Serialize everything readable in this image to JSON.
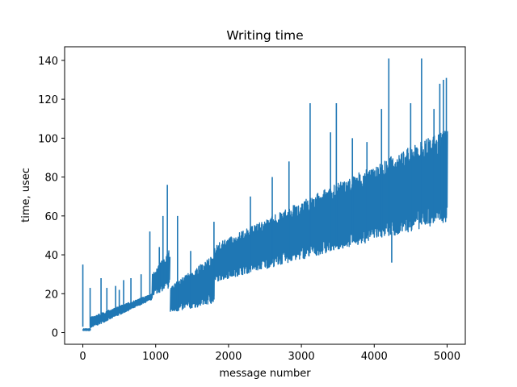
{
  "chart_data": {
    "type": "line",
    "title": "Writing time",
    "xlabel": "message number",
    "ylabel": "time, usec",
    "xlim": [
      -250,
      5250
    ],
    "ylim": [
      -6,
      147
    ],
    "xticks": [
      0,
      1000,
      2000,
      3000,
      4000,
      5000
    ],
    "xtick_labels": [
      "0",
      "1000",
      "2000",
      "3000",
      "4000",
      "5000"
    ],
    "yticks": [
      0,
      20,
      40,
      60,
      80,
      100,
      120,
      140
    ],
    "ytick_labels": [
      "0",
      "20",
      "40",
      "60",
      "80",
      "100",
      "120",
      "140"
    ],
    "grid": false,
    "color": "#1f77b4",
    "series": [
      {
        "envelope": {
          "description_points": "piecewise lower/upper bounds in data units (x, low, high)",
          "segments": [
            {
              "x": [
                0,
                100
              ],
              "low": [
                1,
                1
              ],
              "high": [
                2,
                2
              ]
            },
            {
              "x": [
                100,
                950
              ],
              "low": [
                2,
                17
              ],
              "high": [
                8,
                20
              ]
            },
            {
              "x": [
                950,
                1190
              ],
              "low": [
                19,
                23
              ],
              "high": [
                30,
                43
              ]
            },
            {
              "x": [
                1200,
                1800
              ],
              "low": [
                10,
                15
              ],
              "high": [
                24,
                40
              ]
            },
            {
              "x": [
                1800,
                5000
              ],
              "low": [
                26,
                57
              ],
              "high": [
                45,
                105
              ]
            }
          ]
        },
        "spikes": [
          {
            "x": 0,
            "y": 35
          },
          {
            "x": 100,
            "y": 23
          },
          {
            "x": 250,
            "y": 28
          },
          {
            "x": 330,
            "y": 23
          },
          {
            "x": 450,
            "y": 24
          },
          {
            "x": 500,
            "y": 22
          },
          {
            "x": 560,
            "y": 27
          },
          {
            "x": 660,
            "y": 28
          },
          {
            "x": 800,
            "y": 30
          },
          {
            "x": 920,
            "y": 52
          },
          {
            "x": 1050,
            "y": 44
          },
          {
            "x": 1100,
            "y": 60
          },
          {
            "x": 1160,
            "y": 76
          },
          {
            "x": 1300,
            "y": 60
          },
          {
            "x": 1480,
            "y": 42
          },
          {
            "x": 1800,
            "y": 57
          },
          {
            "x": 2300,
            "y": 70
          },
          {
            "x": 2600,
            "y": 80
          },
          {
            "x": 2830,
            "y": 88
          },
          {
            "x": 3120,
            "y": 118
          },
          {
            "x": 3400,
            "y": 103
          },
          {
            "x": 3480,
            "y": 118
          },
          {
            "x": 3700,
            "y": 100
          },
          {
            "x": 3900,
            "y": 98
          },
          {
            "x": 4100,
            "y": 115
          },
          {
            "x": 4200,
            "y": 141
          },
          {
            "x": 4240,
            "y": 36
          },
          {
            "x": 4500,
            "y": 118
          },
          {
            "x": 4650,
            "y": 141
          },
          {
            "x": 4820,
            "y": 115
          },
          {
            "x": 4900,
            "y": 128
          },
          {
            "x": 4950,
            "y": 130
          },
          {
            "x": 4990,
            "y": 131
          }
        ]
      }
    ]
  }
}
